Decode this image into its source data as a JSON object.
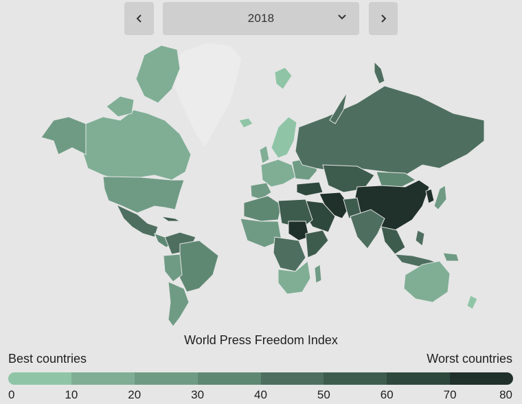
{
  "controls": {
    "year": "2018",
    "prev_icon": "chevron-left-icon",
    "next_icon": "chevron-right-icon",
    "dropdown_icon": "chevron-down-icon"
  },
  "map": {
    "title": "World Press Freedom Index",
    "best_label": "Best countries",
    "worst_label": "Worst countries"
  },
  "legend": {
    "ticks": [
      "0",
      "10",
      "20",
      "30",
      "40",
      "50",
      "60",
      "70",
      "80"
    ],
    "colors": [
      "#8fc5a6",
      "#7fae95",
      "#6f9b84",
      "#5f8873",
      "#4e6f5f",
      "#3e5c4e",
      "#2f483d",
      "#20302a"
    ]
  },
  "colors": {
    "background": "#e6e6e6",
    "no_data": "#ececec"
  }
}
